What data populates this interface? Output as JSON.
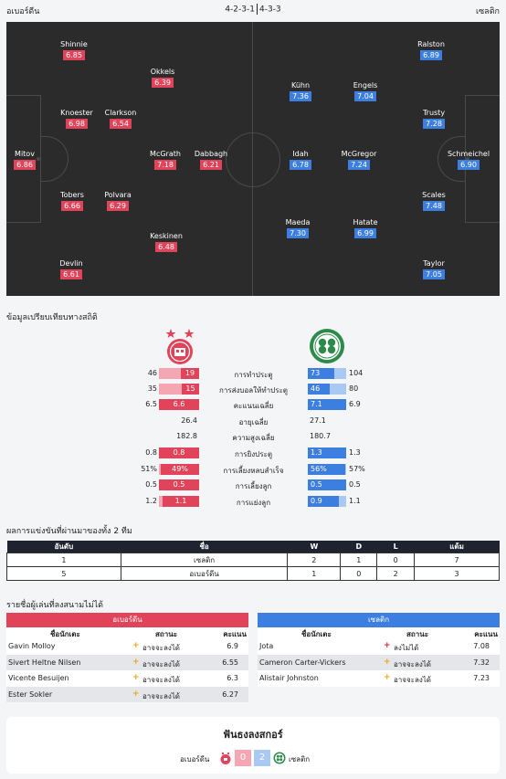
{
  "header": {
    "home": "อเบอร์ดีน",
    "formation_home": "4-2-3-1",
    "formation_away": "4-3-3",
    "away": "เซลติก"
  },
  "pitch": {
    "home_players": [
      {
        "name": "Shinnie",
        "rating": "6.85"
      },
      {
        "name": "Okkels",
        "rating": "6.39"
      },
      {
        "name": "Knoester",
        "rating": "6.98"
      },
      {
        "name": "Clarkson",
        "rating": "6.54"
      },
      {
        "name": "Mitov",
        "rating": "6.86"
      },
      {
        "name": "McGrath",
        "rating": "7.18"
      },
      {
        "name": "Dabbagh",
        "rating": "6.21"
      },
      {
        "name": "Tobers",
        "rating": "6.66"
      },
      {
        "name": "Polvara",
        "rating": "6.29"
      },
      {
        "name": "Keskinen",
        "rating": "6.48"
      },
      {
        "name": "Devlin",
        "rating": "6.61"
      }
    ],
    "away_players": [
      {
        "name": "Ralston",
        "rating": "6.89"
      },
      {
        "name": "Kühn",
        "rating": "7.36"
      },
      {
        "name": "Engels",
        "rating": "7.04"
      },
      {
        "name": "Trusty",
        "rating": "7.28"
      },
      {
        "name": "Idah",
        "rating": "6.78"
      },
      {
        "name": "McGregor",
        "rating": "7.24"
      },
      {
        "name": "Schmeichel",
        "rating": "6.90"
      },
      {
        "name": "Scales",
        "rating": "7.48"
      },
      {
        "name": "Maeda",
        "rating": "7.30"
      },
      {
        "name": "Hatate",
        "rating": "6.99"
      },
      {
        "name": "Taylor",
        "rating": "7.05"
      }
    ]
  },
  "stats": {
    "title": "ข้อมูลเปรียบเทียบทางสถิติ",
    "rows": [
      {
        "label": "การทำประตู",
        "home_total": "46",
        "home_val": "19",
        "away_val": "73",
        "away_total": "104",
        "home_frac": 0.45,
        "away_frac": 0.7,
        "bar": true
      },
      {
        "label": "การส่งบอลให้ทำประตู",
        "home_total": "35",
        "home_val": "15",
        "away_val": "46",
        "away_total": "80",
        "home_frac": 0.43,
        "away_frac": 0.58,
        "bar": true
      },
      {
        "label": "คะแนนเฉลี่ย",
        "home_total": "6.5",
        "home_val": "6.6",
        "away_val": "7.1",
        "away_total": "6.9",
        "home_frac": 1.0,
        "away_frac": 1.0,
        "bar": true
      },
      {
        "label": "อายุเฉลี่ย",
        "home_total": "",
        "home_val": "26.4",
        "away_val": "27.1",
        "away_total": "",
        "bar": false
      },
      {
        "label": "ความสูงเฉลี่ย",
        "home_total": "",
        "home_val": "182.8",
        "away_val": "180.7",
        "away_total": "",
        "bar": false
      },
      {
        "label": "การยิงประตู",
        "home_total": "0.8",
        "home_val": "0.8",
        "away_val": "1.3",
        "away_total": "1.3",
        "home_frac": 1.0,
        "away_frac": 1.0,
        "bar": true
      },
      {
        "label": "การเลี้ยงหลบสำเร็จ",
        "home_total": "51%",
        "home_val": "49%",
        "away_val": "56%",
        "away_total": "57%",
        "home_frac": 0.96,
        "away_frac": 0.98,
        "bar": true
      },
      {
        "label": "การเลี้ยงลูก",
        "home_total": "0.5",
        "home_val": "0.5",
        "away_val": "0.5",
        "away_total": "0.5",
        "home_frac": 1.0,
        "away_frac": 1.0,
        "bar": true
      },
      {
        "label": "การแย่งลูก",
        "home_total": "1.2",
        "home_val": "1.1",
        "away_val": "0.9",
        "away_total": "1.1",
        "home_frac": 0.92,
        "away_frac": 0.82,
        "bar": true
      }
    ]
  },
  "results": {
    "title": "ผลการแข่งขันที่ผ่านมาของทั้ง 2 ทีม",
    "headers": [
      "อันดับ",
      "ชื่อ",
      "W",
      "D",
      "L",
      "แต้ม"
    ],
    "rows": [
      [
        "1",
        "เซลติก",
        "2",
        "1",
        "0",
        "7"
      ],
      [
        "5",
        "อเบอร์ดีน",
        "1",
        "0",
        "2",
        "3"
      ]
    ]
  },
  "injuries": {
    "title": "รายชื่อผู้เล่นที่ลงสนามไม่ได้",
    "col_name": "ชื่อนักเตะ",
    "col_status": "สถานะ",
    "col_score": "คะแนน",
    "home": {
      "team": "อเบอร์ดีน",
      "rows": [
        {
          "name": "Gavin Molloy",
          "status": "อาจจะลงได้",
          "score": "6.9",
          "icon": "doubt"
        },
        {
          "name": "Sivert Heltne Nilsen",
          "status": "อาจจะลงได้",
          "score": "6.55",
          "icon": "doubt"
        },
        {
          "name": "Vicente Besuijen",
          "status": "อาจจะลงได้",
          "score": "6.3",
          "icon": "doubt"
        },
        {
          "name": "Ester Sokler",
          "status": "อาจจะลงได้",
          "score": "6.27",
          "icon": "doubt"
        }
      ]
    },
    "away": {
      "team": "เซลติก",
      "rows": [
        {
          "name": "Jota",
          "status": "ลงไม่ได้",
          "score": "7.08",
          "icon": "out"
        },
        {
          "name": "Cameron Carter-Vickers",
          "status": "อาจจะลงได้",
          "score": "7.32",
          "icon": "doubt"
        },
        {
          "name": "Alistair Johnston",
          "status": "อาจจะลงได้",
          "score": "7.23",
          "icon": "doubt"
        }
      ]
    }
  },
  "fan_vote": {
    "title": "ฟันธงลงสกอร์",
    "home": "อเบอร์ดีน",
    "home_score": "0",
    "away_score": "2",
    "away": "เซลติก"
  },
  "colors": {
    "home": "#e0435a",
    "home_light": "#f4a7b3",
    "away": "#3c7fe0",
    "away_light": "#a9c8f2",
    "pitch": "#2b2b2b"
  }
}
